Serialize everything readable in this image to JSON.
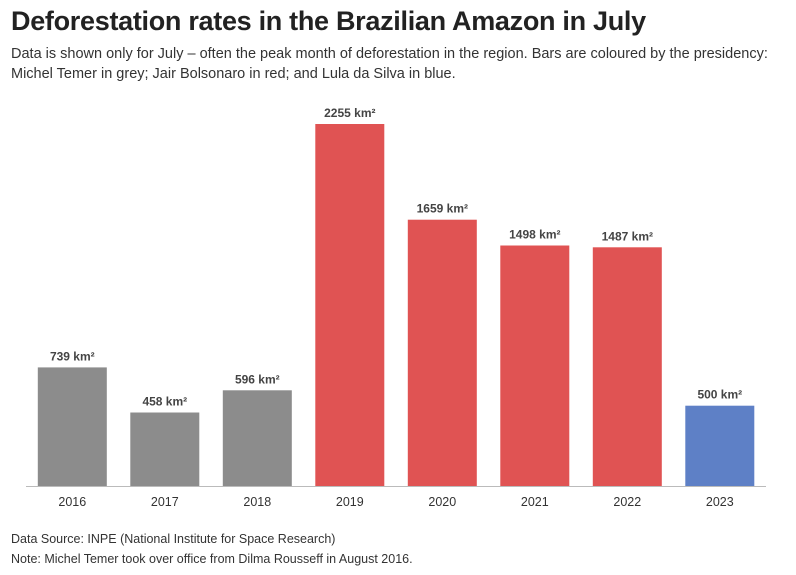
{
  "chart_data": {
    "type": "bar",
    "title": "Deforestation rates in the Brazilian Amazon in July",
    "subtitle": "Data is shown only for July – often the peak month of deforestation in the region. Bars are coloured by the presidency: Michel Temer in grey; Jair Bolsonaro in red; and Lula da Silva in blue.",
    "categories": [
      "2016",
      "2017",
      "2018",
      "2019",
      "2020",
      "2021",
      "2022",
      "2023"
    ],
    "values": [
      739,
      458,
      596,
      2255,
      1659,
      1498,
      1487,
      500
    ],
    "data_labels": [
      "739 km²",
      "458 km²",
      "596 km²",
      "2255 km²",
      "1659 km²",
      "1498 km²",
      "1487 km²",
      "500 km²"
    ],
    "bar_colors": [
      "#8c8c8c",
      "#8c8c8c",
      "#8c8c8c",
      "#e05353",
      "#e05353",
      "#e05353",
      "#e05353",
      "#5e80c6"
    ],
    "xlabel": "",
    "ylabel": "",
    "ylim": [
      0,
      2255
    ],
    "grid": false,
    "legend": "none"
  },
  "footer": {
    "source": "Data Source: INPE (National Institute for Space Research)",
    "note": "Note: Michel Temer took over office from Dilma Rousseff in August 2016."
  },
  "colors": {
    "axis": "#bbbbbb",
    "temer": "#8c8c8c",
    "bolsonaro": "#e05353",
    "lula": "#5e80c6"
  }
}
